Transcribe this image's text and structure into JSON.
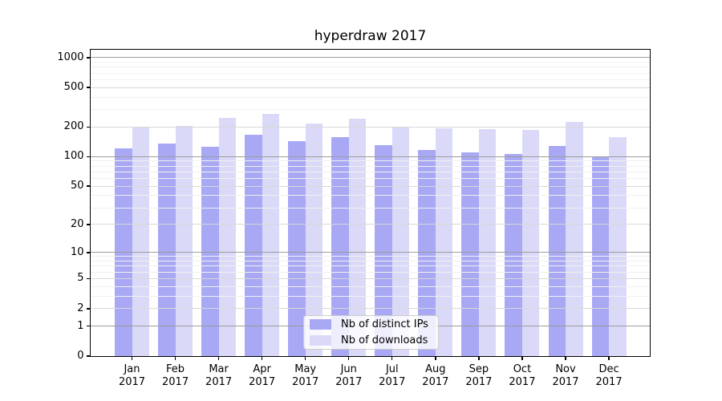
{
  "chart_data": {
    "type": "bar",
    "title": "hyperdraw 2017",
    "categories": [
      "Jan",
      "Feb",
      "Mar",
      "Apr",
      "May",
      "Jun",
      "Jul",
      "Aug",
      "Sep",
      "Oct",
      "Nov",
      "Dec"
    ],
    "category_year": "2017",
    "series": [
      {
        "name": "Nb of distinct IPs",
        "color": "#a8a8f4",
        "values": [
          122,
          135,
          127,
          168,
          145,
          157,
          130,
          116,
          111,
          106,
          129,
          100
        ]
      },
      {
        "name": "Nb of downloads",
        "color": "#dadaf8",
        "values": [
          199,
          206,
          248,
          270,
          218,
          242,
          198,
          194,
          190,
          188,
          226,
          158
        ]
      }
    ],
    "y_scale": "log1p",
    "y_ticks": [
      0,
      1,
      2,
      5,
      10,
      20,
      50,
      100,
      200,
      500,
      1000
    ],
    "y_decade_ticks": [
      1,
      10,
      100,
      1000
    ],
    "y_minor_ticks": [
      3,
      4,
      6,
      7,
      8,
      9,
      30,
      40,
      60,
      70,
      80,
      90,
      300,
      400,
      600,
      700,
      800,
      900
    ],
    "ylim": [
      0,
      1200
    ],
    "xlabel": "",
    "ylabel": "",
    "grid": "horizontal",
    "legend_position": "lower-center"
  }
}
